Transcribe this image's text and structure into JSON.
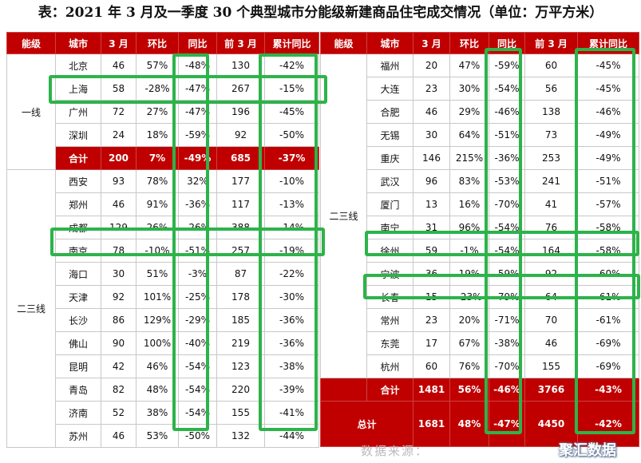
{
  "title": "表：2021 年 3 月及一季度 30 个典型城市分能级新建商品住宅成交情况（单位：万平方米）",
  "headers": [
    "能级",
    "城市",
    "3 月",
    "环比",
    "同比",
    "前 3 月",
    "累计同比"
  ],
  "left": {
    "tier1_label": "一线",
    "tier1_rows": [
      [
        "北京",
        "46",
        "57%",
        "-48%",
        "130",
        "-42%"
      ],
      [
        "上海",
        "58",
        "-28%",
        "-47%",
        "267",
        "-15%"
      ],
      [
        "广州",
        "72",
        "27%",
        "-47%",
        "196",
        "-45%"
      ],
      [
        "深圳",
        "24",
        "18%",
        "-59%",
        "92",
        "-50%"
      ]
    ],
    "tier1_sum": [
      "合计",
      "200",
      "7%",
      "-49%",
      "685",
      "-37%"
    ],
    "tier23_label": "二三线",
    "tier23_rows": [
      [
        "西安",
        "93",
        "78%",
        "32%",
        "177",
        "-10%"
      ],
      [
        "郑州",
        "46",
        "91%",
        "-36%",
        "117",
        "-13%"
      ],
      [
        "成都",
        "129",
        "26%",
        "-26%",
        "388",
        "-14%"
      ],
      [
        "南京",
        "78",
        "-10%",
        "-51%",
        "257",
        "-19%"
      ],
      [
        "海口",
        "30",
        "51%",
        "-3%",
        "87",
        "-22%"
      ],
      [
        "天津",
        "92",
        "101%",
        "-25%",
        "178",
        "-30%"
      ],
      [
        "长沙",
        "86",
        "129%",
        "-29%",
        "185",
        "-36%"
      ],
      [
        "佛山",
        "90",
        "100%",
        "-40%",
        "219",
        "-36%"
      ],
      [
        "昆明",
        "42",
        "46%",
        "-54%",
        "123",
        "-38%"
      ],
      [
        "青岛",
        "82",
        "48%",
        "-54%",
        "220",
        "-39%"
      ],
      [
        "济南",
        "52",
        "38%",
        "-54%",
        "155",
        "-41%"
      ],
      [
        "苏州",
        "46",
        "53%",
        "-50%",
        "132",
        "-44%"
      ]
    ]
  },
  "right": {
    "tier23_label": "二三线",
    "rows": [
      [
        "福州",
        "20",
        "47%",
        "-59%",
        "60",
        "-45%"
      ],
      [
        "大连",
        "23",
        "30%",
        "-54%",
        "56",
        "-45%"
      ],
      [
        "合肥",
        "46",
        "29%",
        "-46%",
        "138",
        "-46%"
      ],
      [
        "无锡",
        "30",
        "64%",
        "-51%",
        "73",
        "-49%"
      ],
      [
        "重庆",
        "146",
        "215%",
        "-36%",
        "253",
        "-49%"
      ],
      [
        "武汉",
        "96",
        "83%",
        "-53%",
        "241",
        "-51%"
      ],
      [
        "厦门",
        "13",
        "16%",
        "-70%",
        "41",
        "-57%"
      ],
      [
        "南宁",
        "31",
        "96%",
        "-54%",
        "76",
        "-58%"
      ],
      [
        "徐州",
        "59",
        "-1%",
        "-54%",
        "164",
        "-58%"
      ],
      [
        "宁波",
        "36",
        "19%",
        "-59%",
        "92",
        "-60%"
      ],
      [
        "长春",
        "15",
        "-23%",
        "-79%",
        "64",
        "-61%"
      ],
      [
        "常州",
        "23",
        "20%",
        "-71%",
        "70",
        "-61%"
      ],
      [
        "东莞",
        "17",
        "67%",
        "-38%",
        "46",
        "-69%"
      ],
      [
        "杭州",
        "60",
        "76%",
        "-70%",
        "155",
        "-69%"
      ]
    ],
    "sum": [
      "合计",
      "1481",
      "56%",
      "-46%",
      "3766",
      "-43%"
    ],
    "total": [
      "总计",
      "1681",
      "48%",
      "-47%",
      "4450",
      "-42%"
    ]
  },
  "watermark": {
    "faint_text": "数据来源：",
    "logo_text": "聚汇数据"
  },
  "colors": {
    "header_bg": "#c00000",
    "highlight": "#2db34a"
  }
}
